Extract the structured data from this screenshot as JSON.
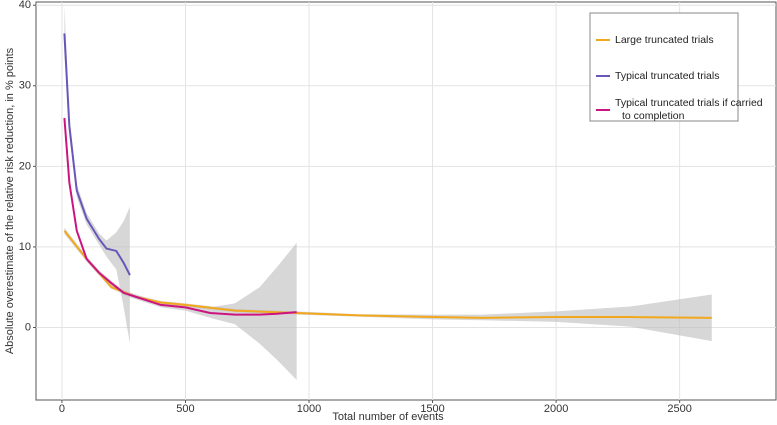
{
  "chart_data": {
    "type": "line",
    "x_label": "Total number of events",
    "y_label": "Absolute overestimate of the relative risk reduction, in % points",
    "xlim": [
      -105,
      2890
    ],
    "ylim": [
      -9,
      40.4
    ],
    "xticks": [
      0,
      500,
      1000,
      1500,
      2000,
      2500
    ],
    "yticks": [
      0,
      10,
      20,
      30,
      40
    ],
    "grid": true,
    "legend": "top-right",
    "band_color": "#bdbdbd",
    "series": [
      {
        "name": "Large truncated trials",
        "color": "#f2a81d",
        "x": [
          10,
          100,
          200,
          300,
          400,
          500,
          700,
          950,
          1200,
          1500,
          1700,
          2000,
          2300,
          2630
        ],
        "values": [
          12,
          8.5,
          5,
          3.8,
          3.1,
          2.8,
          2.1,
          1.8,
          1.5,
          1.3,
          1.2,
          1.3,
          1.3,
          1.2
        ],
        "lower": [
          11.6,
          8.2,
          4.8,
          3.6,
          2.9,
          2.6,
          1.9,
          1.6,
          1.35,
          1.0,
          0.9,
          0.7,
          0.1,
          -1.7
        ],
        "upper": [
          12.4,
          8.8,
          5.2,
          4.0,
          3.3,
          3.0,
          2.3,
          2.0,
          1.65,
          1.6,
          1.6,
          2.0,
          2.6,
          4.1
        ]
      },
      {
        "name": "Typical truncated trials",
        "color": "#6a56b8",
        "x": [
          10,
          30,
          60,
          100,
          150,
          180,
          220,
          250,
          275
        ],
        "values": [
          36.5,
          25,
          17,
          13.5,
          11,
          9.8,
          9.5,
          8,
          6.5
        ],
        "lower": [
          34,
          23.8,
          16.2,
          12.8,
          10.3,
          8.8,
          7.2,
          2.5,
          -2
        ],
        "upper": [
          40,
          26.2,
          17.8,
          14.2,
          11.7,
          10.8,
          11.8,
          13.2,
          15
        ]
      },
      {
        "name": "Typical truncated trials if carried to completion",
        "color": "#cc1480",
        "x": [
          10,
          30,
          60,
          100,
          150,
          200,
          250,
          300,
          400,
          500,
          600,
          700,
          800,
          870,
          950
        ],
        "values": [
          26,
          18,
          12,
          8.5,
          6.8,
          5.5,
          4.3,
          3.8,
          2.8,
          2.5,
          1.8,
          1.6,
          1.6,
          1.7,
          1.9
        ],
        "lower": [
          25.4,
          17.6,
          11.7,
          8.2,
          6.5,
          5.2,
          4.0,
          3.5,
          2.5,
          2.1,
          1.2,
          0.4,
          -2,
          -4,
          -6.5
        ],
        "upper": [
          26.6,
          18.4,
          12.3,
          8.8,
          7.1,
          5.8,
          4.6,
          4.1,
          3.1,
          2.9,
          2.5,
          3,
          5,
          7.5,
          10.5
        ]
      }
    ]
  }
}
